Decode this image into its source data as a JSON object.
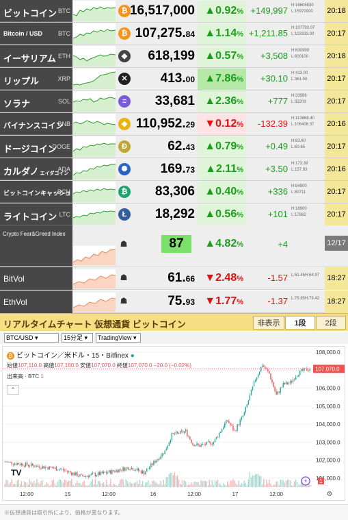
{
  "tickers": [
    {
      "name": "ビットコイン",
      "sym": "BTC",
      "coin": "₿",
      "coin_color": "#f7931a",
      "price_int": "16,517,000",
      "price_dec": "",
      "dir": "up",
      "pct_val": "0.92",
      "pct_unit": "%",
      "chg": "+149,997",
      "hi": "H:16605630",
      "lo": "L:15970000",
      "time": "20:18",
      "pct_style": "lite"
    },
    {
      "name": "Bitcoin / USD",
      "sym": "BTC",
      "coin": "₿",
      "coin_color": "#f7931a",
      "price_int": "107,275.",
      "price_dec": "84",
      "dir": "up",
      "pct_val": "1.14",
      "pct_unit": "%",
      "chg": "+1,211.85",
      "hi": "H:107793.07",
      "lo": "L:103333.00",
      "time": "20:17",
      "pct_style": "lite"
    },
    {
      "name": "イーサリアム",
      "sym": "ETH",
      "coin": "◆",
      "coin_color": "#444444",
      "price_int": "618,199",
      "price_dec": "",
      "dir": "up",
      "pct_val": "0.57",
      "pct_unit": "%",
      "chg": "+3,508",
      "hi": "H:630999",
      "lo": "L:600100",
      "time": "20:18",
      "pct_style": "lite"
    },
    {
      "name": "リップル",
      "sym": "XRP",
      "coin": "✕",
      "coin_color": "#222222",
      "price_int": "413.",
      "price_dec": "00",
      "dir": "up",
      "pct_val": "7.86",
      "pct_unit": "%",
      "chg": "+30.10",
      "hi": "H:413.00",
      "lo": "L:361.50",
      "time": "20:17",
      "pct_style": "hl"
    },
    {
      "name": "ソラナ",
      "sym": "SOL",
      "coin": "≡",
      "coin_color": "#7a5cd6",
      "price_int": "33,681",
      "price_dec": "",
      "dir": "up",
      "pct_val": "2.36",
      "pct_unit": "%",
      "chg": "+777",
      "hi": "H:33986",
      "lo": "L:32203",
      "time": "20:17",
      "pct_style": "lite"
    },
    {
      "name": "バイナンスコイン",
      "sym": "BNB",
      "coin": "◈",
      "coin_color": "#e8b30b",
      "price_int": "110,952.",
      "price_dec": "29",
      "dir": "down",
      "pct_val": "0.12",
      "pct_unit": "%",
      "chg": "-132.39",
      "hi": "H:113868.40",
      "lo": "L:106406.37",
      "time": "20:16",
      "pct_style": "redlite"
    },
    {
      "name": "ドージコイン",
      "sym": "DOGE",
      "coin": "Ð",
      "coin_color": "#c2a633",
      "price_int": "62.",
      "price_dec": "43",
      "dir": "up",
      "pct_val": "0.79",
      "pct_unit": "%",
      "chg": "+0.49",
      "hi": "H:63.60",
      "lo": "L:60.65",
      "time": "20:17",
      "pct_style": "lite"
    },
    {
      "name": "カルダノ",
      "name_sub": "エイダコイン",
      "sym": "ADA",
      "coin": "✺",
      "coin_color": "#2a63c6",
      "price_int": "169.",
      "price_dec": "73",
      "dir": "up",
      "pct_val": "2.11",
      "pct_unit": "%",
      "chg": "+3.50",
      "hi": "H:173.39",
      "lo": "L:157.93",
      "time": "20:16",
      "pct_style": "lite"
    },
    {
      "name": "ビットコインキャッシュ",
      "sym": "BCH",
      "coin": "₿",
      "coin_color": "#1ea36e",
      "price_int": "83,306",
      "price_dec": "",
      "dir": "up",
      "pct_val": "0.40",
      "pct_unit": "%",
      "chg": "+336",
      "hi": "H:84900",
      "lo": "L:80711",
      "time": "20:17",
      "pct_style": "lite"
    },
    {
      "name": "ライトコイン",
      "sym": "LTC",
      "coin": "Ł",
      "coin_color": "#345d9d",
      "price_int": "18,292",
      "price_dec": "",
      "dir": "up",
      "pct_val": "0.56",
      "pct_unit": "%",
      "chg": "+101",
      "hi": "H:18900",
      "lo": "L:17862",
      "time": "20:17",
      "pct_style": "lite"
    }
  ],
  "fear_greed": {
    "title": "Crypto Fear&Greed Index",
    "value": "87",
    "arrow": "▲",
    "pct_val": "4.82",
    "pct_unit": "%",
    "chg": "+4",
    "date": "12/17"
  },
  "vols": [
    {
      "name": "BitVol",
      "price_int": "61.",
      "price_dec": "66",
      "dir": "down",
      "arrow": "▼",
      "pct_val": "2.48",
      "pct_unit": "%",
      "chg": "-1.57",
      "hi": "H:64.97",
      "lo": "L:61.46",
      "time": "18:27"
    },
    {
      "name": "EthVol",
      "price_int": "75.",
      "price_dec": "93",
      "dir": "down",
      "arrow": "▼",
      "pct_val": "1.77",
      "pct_unit": "%",
      "chg": "-1.37",
      "hi": "H:79.42",
      "lo": "L:75.85",
      "time": "18:27"
    }
  ],
  "arrows": {
    "up": "▲",
    "down": "▼"
  },
  "realtime": {
    "title": "リアルタイムチャート 仮想通貨 ビットコイン",
    "btn_hide": "非表示",
    "btn_one": "1段",
    "btn_two": "2段",
    "pair_select": "BTC/USD",
    "interval_select": "15分足",
    "source_select": "TradingView",
    "legend": "ビットコイン／米ドル・15・Bitfinex",
    "ohlc_open_lbl": "始値",
    "ohlc_open": "107,110.0",
    "ohlc_high_lbl": "高値",
    "ohlc_high": "107,160.0",
    "ohlc_low_lbl": "安値",
    "ohlc_low": "107,070.0",
    "ohlc_close_lbl": "終値",
    "ohlc_close": "107,070.0",
    "ohlc_change": "−20.0 (−0.02%)",
    "volume_lbl": "出来高 · BTC",
    "volume_val": "1",
    "collapse_icon": "⌃",
    "price_axis": [
      "108,000.0",
      "107,000.0",
      "106,000.0",
      "105,000.0",
      "104,000.0",
      "103,000.0",
      "102,000.0",
      "101,000.0"
    ],
    "current_price": "107,070.0",
    "time_axis": [
      "12:00",
      "15",
      "12:00",
      "16",
      "12:00",
      "17",
      "12:00"
    ],
    "tv_logo": "TV",
    "plus_icon": "+",
    "alert_count": "1",
    "settings_icon": "⚙"
  },
  "footer": "※仮想通貨は取引所により、価格が異なります。"
}
